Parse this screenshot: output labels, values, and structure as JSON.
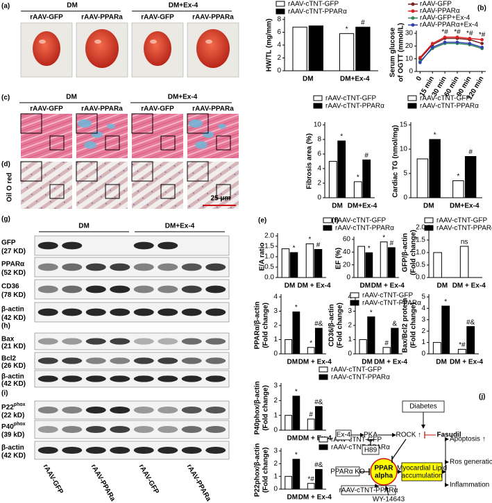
{
  "chart_data": [
    {
      "type": "bar",
      "ylabel": [
        "HW/TL (mg/mm)"
      ],
      "categories": [
        "DM",
        "DM+Ex-4"
      ],
      "series": [
        {
          "name": "rAAV-cTNT-GFP",
          "color": "#ffffff",
          "values": [
            6.8,
            5.8
          ],
          "markers": [
            null,
            "*"
          ]
        },
        {
          "name": "rAAV-cTNT-PPARα",
          "color": "#000000",
          "values": [
            7.0,
            6.8
          ],
          "markers": [
            null,
            "#"
          ]
        }
      ],
      "ylim": [
        0,
        8
      ],
      "yticks": [
        0,
        2,
        4,
        6,
        8
      ]
    },
    {
      "type": "line",
      "panel_label": "(b)",
      "ylabel": [
        "Serum glucose",
        "of OGTT (mmol/L)"
      ],
      "categories": [
        "0",
        "15 min",
        "30 min",
        "60 min",
        "90 min",
        "120 min"
      ],
      "series": [
        {
          "name": "rAAV-GFP",
          "color": "#7b1f1f",
          "values": [
            10,
            21,
            26,
            26,
            25,
            22
          ]
        },
        {
          "name": "rAAV-PPARα",
          "color": "#e02020",
          "values": [
            11,
            22,
            27,
            27,
            26,
            25
          ]
        },
        {
          "name": "rAAV-GFP+Ex-4",
          "color": "#2e8b57",
          "values": [
            8,
            18,
            22,
            22,
            21,
            18
          ]
        },
        {
          "name": "rAAV-PPARα+Ex-4",
          "color": "#2f3fb0",
          "values": [
            7,
            19,
            23,
            23,
            22,
            19
          ]
        }
      ],
      "markers": [
        null,
        null,
        "*#",
        "*#",
        "*#",
        "*#"
      ],
      "ylim": [
        0,
        30
      ],
      "yticks": [
        0,
        10,
        20,
        30
      ]
    },
    {
      "type": "bar",
      "ylabel": [
        "Fibrosis area (%)"
      ],
      "categories": [
        "DM",
        "DM+Ex-4"
      ],
      "series": [
        {
          "name": "rAAV-cTNT-GFP",
          "color": "#ffffff",
          "values": [
            5.0,
            2.2
          ],
          "markers": [
            null,
            "*"
          ]
        },
        {
          "name": "rAAV-cTNT-PPARα",
          "color": "#000000",
          "values": [
            7.8,
            5.2
          ],
          "markers": [
            "*",
            "#"
          ]
        }
      ],
      "ylim": [
        0,
        10
      ],
      "yticks": [
        0,
        2,
        4,
        6,
        8,
        10
      ]
    },
    {
      "type": "bar",
      "ylabel": [
        "Cardiac TG (nmol/mg)"
      ],
      "categories": [
        "DM",
        "DM+Ex-4"
      ],
      "series": [
        {
          "name": "rAAV-cTNT-GFP",
          "color": "#ffffff",
          "values": [
            8,
            3.5
          ],
          "markers": [
            null,
            "*"
          ]
        },
        {
          "name": "rAAV-cTNT-PPARα",
          "color": "#000000",
          "values": [
            12,
            8.5
          ],
          "markers": [
            "*",
            "#"
          ]
        }
      ],
      "ylim": [
        0,
        15
      ],
      "yticks": [
        0,
        5,
        10,
        15
      ]
    },
    {
      "type": "bar",
      "panel_label": "(e)",
      "ylabel": [
        "E/A ratio"
      ],
      "categories": [
        "DM",
        "DM + Ex-4"
      ],
      "series": [
        {
          "color": "#ffffff",
          "values": [
            1.38,
            1.62
          ],
          "markers": [
            null,
            "*"
          ]
        },
        {
          "color": "#000000",
          "values": [
            1.2,
            1.35
          ],
          "markers": [
            "*",
            "#"
          ]
        }
      ],
      "ylim": [
        0,
        2
      ],
      "yticks": [
        {
          "value": 0,
          "label": "0.0"
        },
        0.5,
        {
          "value": 1,
          "label": "1.0"
        },
        1.5,
        {
          "value": 2,
          "label": "2.0"
        }
      ]
    },
    {
      "type": "bar",
      "panel_label": "(f)",
      "ylabel": [
        "EF (%)"
      ],
      "categories": [
        "DM",
        "DM + Ex-4"
      ],
      "series": [
        {
          "name": "rAAV-cTNT-GFP",
          "color": "#ffffff",
          "values": [
            49,
            56
          ],
          "markers": [
            null,
            "*"
          ]
        },
        {
          "name": "rAAV-cTNT-PPARα",
          "color": "#000000",
          "values": [
            39,
            47
          ],
          "markers": [
            "*",
            "#"
          ]
        }
      ],
      "ylim": [
        0,
        60
      ],
      "yticks": [
        0,
        20,
        40,
        60
      ]
    },
    {
      "type": "bar",
      "ylabel": [
        "GFP/β-actin",
        "(Fold change)"
      ],
      "categories": [
        "DM",
        "DM + Ex-4"
      ],
      "series": [
        {
          "name": "rAAV-cTNT-GFP",
          "color": "#ffffff",
          "values": [
            1.0,
            1.25
          ],
          "markers": [
            null,
            "ns"
          ]
        },
        {
          "name": "rAAV-cTNT-PPARα",
          "color": "#000000",
          "values": [
            0,
            0
          ]
        }
      ],
      "ylim": [
        0,
        2
      ],
      "yticks": [
        {
          "value": 0,
          "label": "0.0"
        },
        0.5,
        {
          "value": 1,
          "label": "1.0"
        },
        1.5,
        {
          "value": 2,
          "label": "2.0"
        }
      ]
    },
    {
      "type": "bar",
      "ylabel": [
        "PPARα/β-actin",
        "(Fold change)"
      ],
      "categories": [
        "DM",
        "DM + Ex-4"
      ],
      "series": [
        {
          "color": "#ffffff",
          "values": [
            1,
            0.45
          ],
          "markers": [
            null,
            "*"
          ]
        },
        {
          "color": "#000000",
          "values": [
            2.95,
            1.8
          ],
          "markers": [
            "*",
            "#&"
          ]
        }
      ],
      "ylim": [
        0,
        4
      ],
      "yticks": [
        0,
        1,
        2,
        3,
        4
      ]
    },
    {
      "type": "bar",
      "ylabel": [
        "CD36/β-actin",
        "(Fold change)"
      ],
      "categories": [
        "DM",
        "DM + Ex-4"
      ],
      "series": [
        {
          "name": "rAAV-cTNT-GFP",
          "color": "#ffffff",
          "values": [
            1,
            0.45
          ],
          "markers": [
            null,
            "#"
          ]
        },
        {
          "name": "rAAV-cTNT-PPARα",
          "color": "#000000",
          "values": [
            2.6,
            1.8
          ],
          "markers": [
            "*",
            "&"
          ]
        }
      ],
      "ylim": [
        0,
        4
      ],
      "yticks": [
        0,
        1,
        2,
        3,
        4
      ]
    },
    {
      "type": "bar",
      "ylabel": [
        "Bax/Bcl2 protein",
        "(Fold change)"
      ],
      "categories": [
        "DM",
        "DM + Ex-4"
      ],
      "series": [
        {
          "color": "#ffffff",
          "values": [
            1,
            0.4
          ],
          "markers": [
            null,
            "*#"
          ]
        },
        {
          "color": "#000000",
          "values": [
            4.2,
            2.4
          ],
          "markers": [
            "*",
            "#&"
          ]
        }
      ],
      "ylim": [
        0,
        5
      ],
      "yticks": [
        0,
        1,
        2,
        3,
        4,
        5
      ]
    },
    {
      "type": "bar",
      "ylabel": [
        "P40phox/β-actin",
        "(Fold change)"
      ],
      "categories": [
        "DM",
        "DM + Ex-4"
      ],
      "series": [
        {
          "name": "rAAV-cTNT-GFP",
          "color": "#ffffff",
          "values": [
            1,
            0.75
          ],
          "markers": [
            null,
            "#"
          ]
        },
        {
          "name": "rAAV-cTNT-PPARα",
          "color": "#000000",
          "values": [
            2.3,
            1.6
          ],
          "markers": [
            "*",
            "#&"
          ]
        }
      ],
      "ylim": [
        0,
        3
      ],
      "yticks": [
        0,
        1,
        2,
        3
      ]
    },
    {
      "type": "bar",
      "ylabel": [
        "P22phox/β-actin",
        "(Fold change)"
      ],
      "categories": [
        "DM",
        "DM + Ex-4"
      ],
      "series": [
        {
          "name": "rAAV-cTNT-GFP",
          "color": "#ffffff",
          "values": [
            1,
            0.45
          ],
          "markers": [
            null,
            "*#"
          ]
        },
        {
          "name": "rAAV-cTNT-PPARα",
          "color": "#000000",
          "values": [
            2.35,
            1.55
          ],
          "markers": [
            "*",
            "#&"
          ]
        }
      ],
      "ylim": [
        0,
        3
      ],
      "yticks": [
        0,
        1,
        2,
        3
      ]
    }
  ],
  "panels": {
    "a": {
      "label": "(a)",
      "groups": [
        "DM",
        "DM+Ex-4"
      ],
      "columns": [
        "rAAV-GFP",
        "rAAV-PPARa",
        "rAAV-GFP",
        "rAAV-PPARa"
      ]
    },
    "c": {
      "label": "(c)",
      "groups": [
        "DM",
        "DM+Ex-4"
      ],
      "columns": [
        "rAAV-GFP",
        "rAAV-PPARa",
        "rAAV-GFP",
        "rAAV-PPARa"
      ]
    },
    "d": {
      "label": "(d)",
      "stain": "Oil O red",
      "scale_bar": "25 μm"
    }
  },
  "blots": {
    "groups": [
      "DM",
      "DM+Ex-4"
    ],
    "columns": [
      "rAAV-GFP",
      "rAAV-PPARa",
      "rAAV-GFP",
      "rAAV-PPARa"
    ],
    "sets": [
      {
        "label": "(g)",
        "rows": [
          {
            "name": "GFP",
            "size": "(27 KD)"
          },
          {
            "name": "PPARα",
            "size": "(52 KD)"
          },
          {
            "name": "CD36",
            "size": "(78 KD)"
          },
          {
            "name": "β-actin",
            "size": "(42 KD)"
          }
        ]
      },
      {
        "label": "(h)",
        "rows": [
          {
            "name": "Bax",
            "size": "(21 KD)"
          },
          {
            "name": "Bcl2",
            "size": "(26 KD)"
          },
          {
            "name": "β-actin",
            "size": "(42 KD)"
          }
        ]
      },
      {
        "label": "(i)",
        "rows": [
          {
            "name": "P22",
            "sup": "phox",
            "size": "(22 kD)"
          },
          {
            "name": "P40",
            "sup": "phox",
            "size": "(39 kD)"
          },
          {
            "name": "β-actin",
            "size": "(42 KD)"
          }
        ]
      }
    ]
  },
  "diagram": {
    "label": "(j)",
    "diabetes": "Diabetes",
    "ex4": "Ex-4",
    "pka": "PKA",
    "rock": "ROCK",
    "fasudil": "Fasudil",
    "h89": "H89",
    "ppar_ko": "PPARα KO",
    "ppar": [
      "PPAR",
      "alpha"
    ],
    "lipid": [
      "Myocardial Lipid",
      "accumulation"
    ],
    "raav": "rAAV-cTNT-PPARα",
    "wy": "WY-14643",
    "outcomes": [
      "Apoptosis",
      "Ros generation",
      "Inflammation"
    ]
  }
}
